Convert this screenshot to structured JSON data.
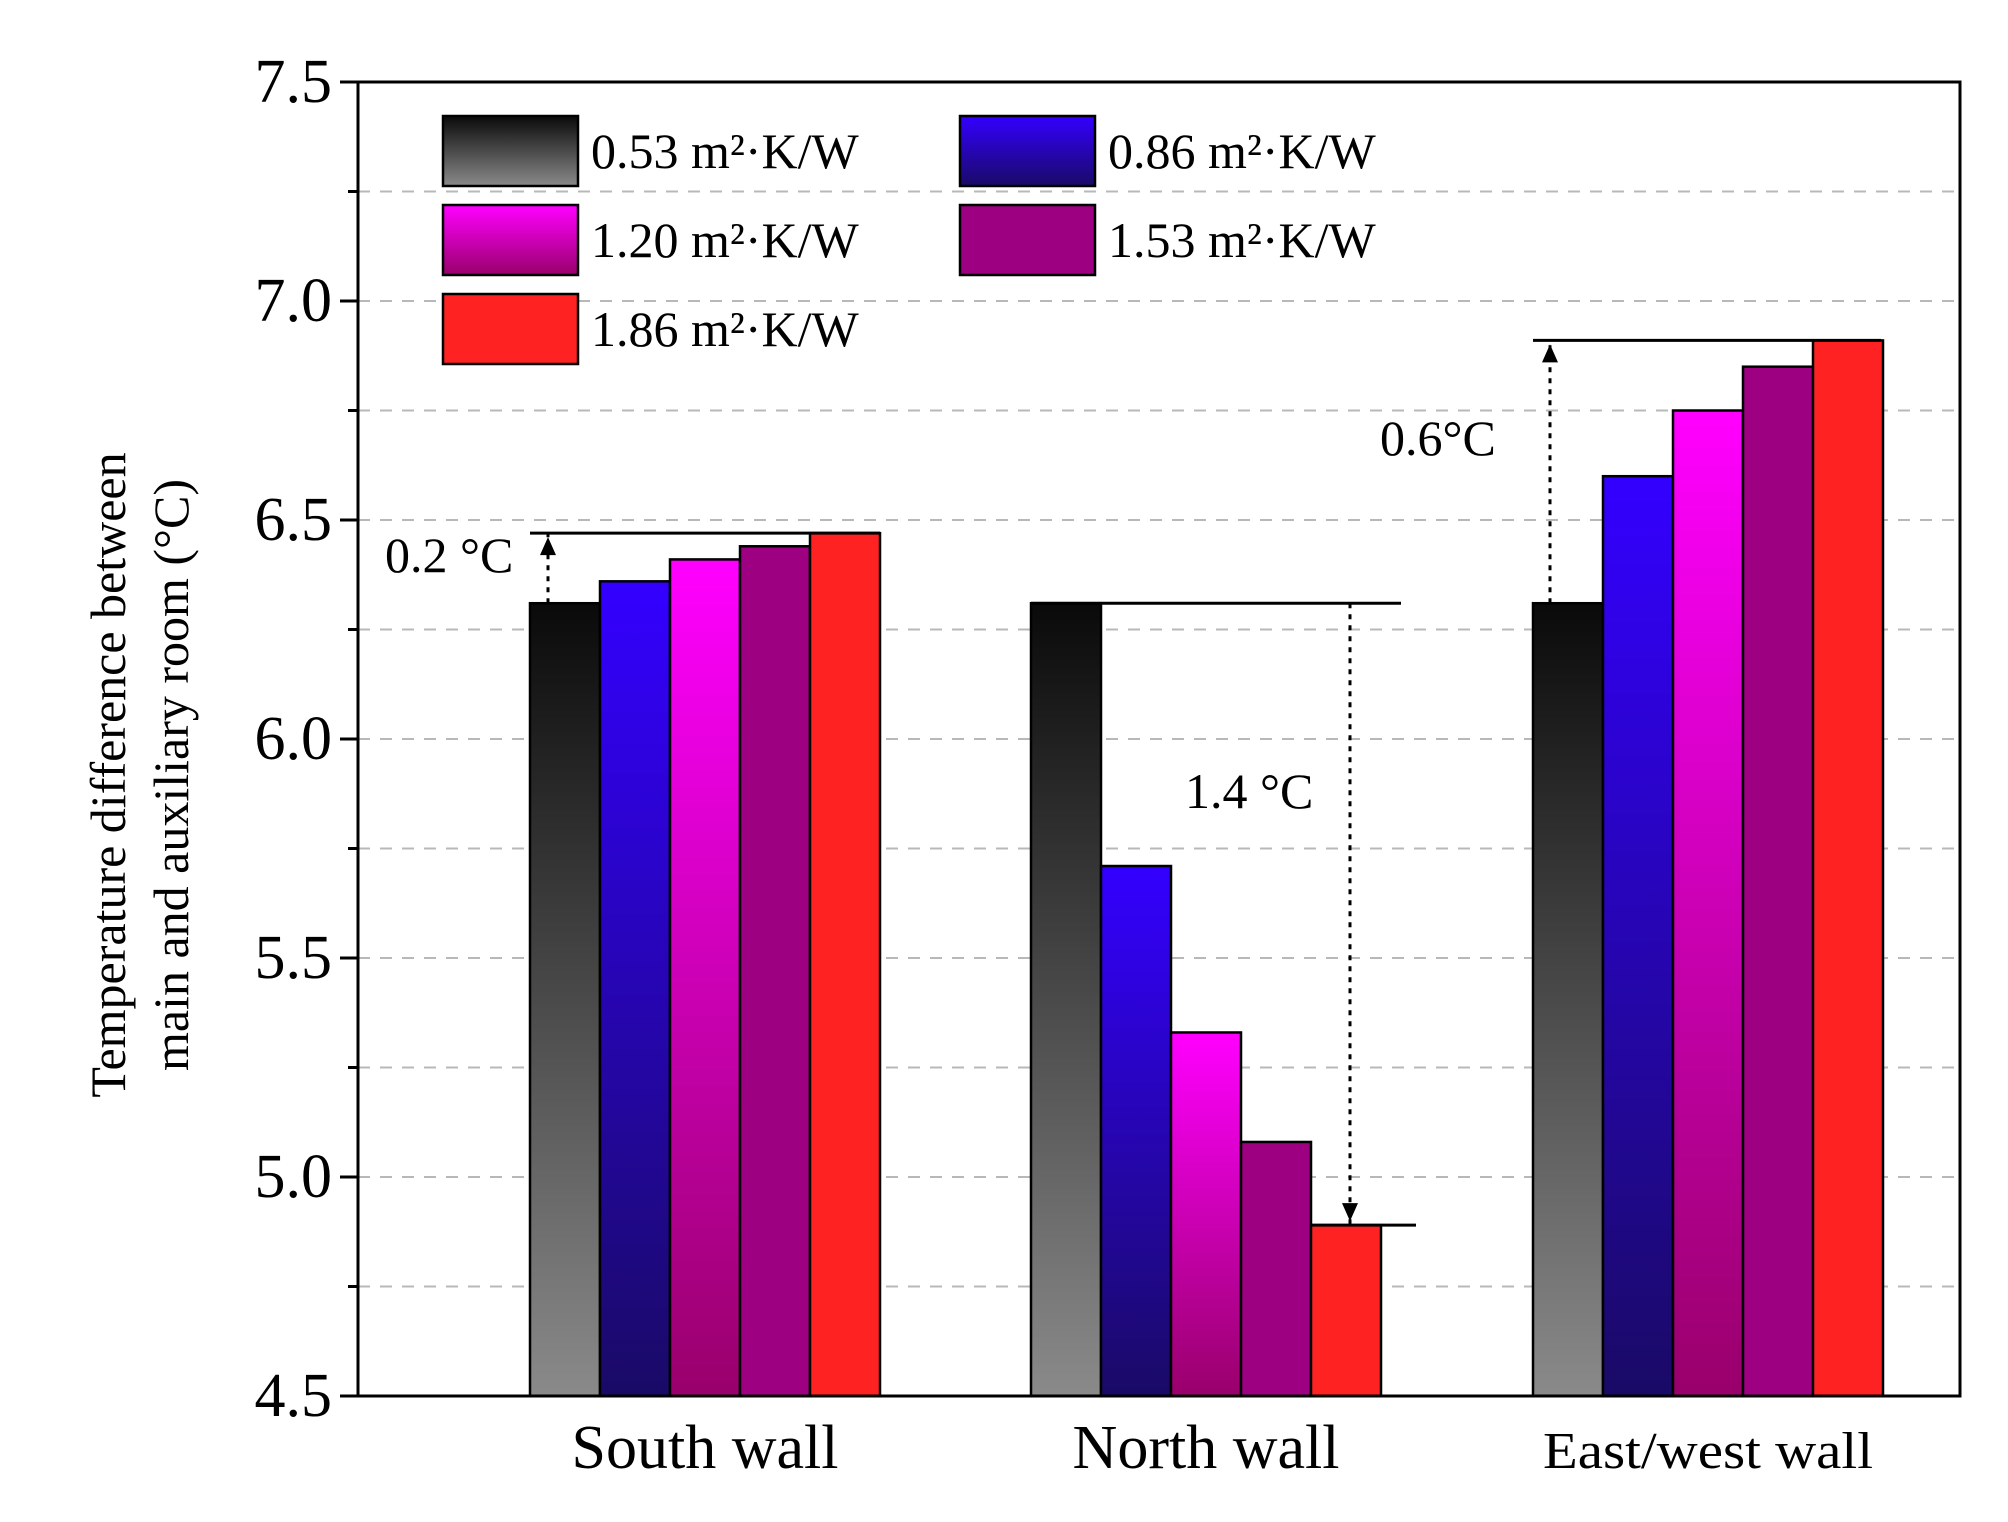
{
  "chart_data": {
    "type": "bar",
    "ylabel_line1": "Temperature difference between",
    "ylabel_line2": "main and auxiliary room (°C)",
    "xlabel": "",
    "ylim": [
      4.5,
      7.5
    ],
    "yticks": [
      4.5,
      5.0,
      5.5,
      6.0,
      6.5,
      7.0,
      7.5
    ],
    "ytick_labels": [
      "4.5",
      "5.0",
      "5.5",
      "6.0",
      "6.5",
      "7.0",
      "7.5"
    ],
    "grid": "horizontal dashed",
    "legend_position": "top-left",
    "categories": [
      "South wall",
      "North wall",
      "East/west wall"
    ],
    "series": [
      {
        "name": "0.53 m²·K/W",
        "values": [
          6.31,
          6.31,
          6.31
        ],
        "color_top": "#0a0a0a",
        "color_bottom": "#8a8a8a"
      },
      {
        "name": "0.86 m²·K/W",
        "values": [
          6.36,
          5.71,
          6.6
        ],
        "color_top": "#3300ff",
        "color_bottom": "#1a0a66"
      },
      {
        "name": "1.20 m²·K/W",
        "values": [
          6.41,
          5.33,
          6.75
        ],
        "color_top": "#ff00ff",
        "color_bottom": "#99006b"
      },
      {
        "name": "1.53 m²·K/W",
        "values": [
          6.44,
          5.08,
          6.85
        ],
        "color_top": "#9d0081",
        "color_bottom": "#9d0081"
      },
      {
        "name": "1.86 m²·K/W",
        "values": [
          6.47,
          4.89,
          6.91
        ],
        "color_top": "#ff2222",
        "color_bottom": "#ff2222"
      }
    ],
    "annotations": [
      {
        "text": "0.2 °C",
        "category": "South wall",
        "from": 6.31,
        "to": 6.47
      },
      {
        "text": "1.4 °C",
        "category": "North wall",
        "from": 6.31,
        "to": 4.89
      },
      {
        "text": "0.6°C",
        "category": "East/west wall",
        "from": 6.31,
        "to": 6.91
      }
    ]
  }
}
